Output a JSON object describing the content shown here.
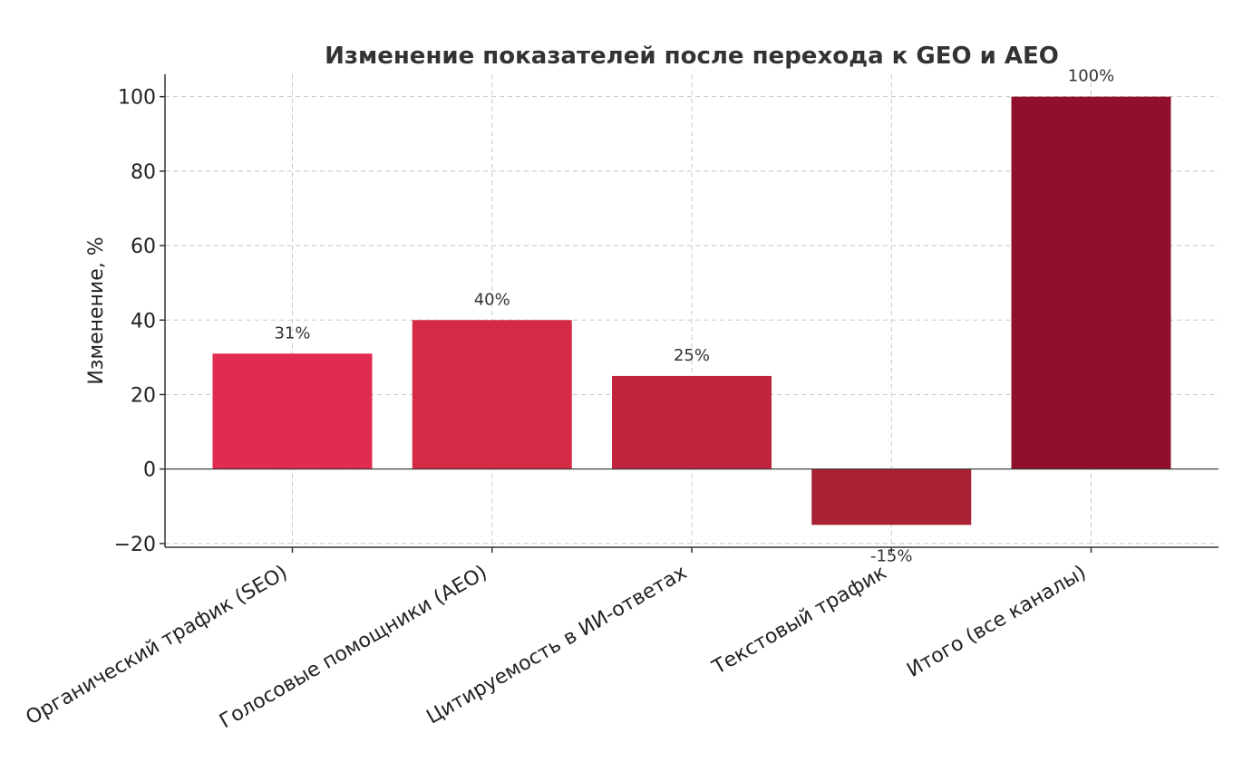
{
  "chart_data": {
    "type": "bar",
    "title": "Изменение показателей после перехода к GEO и AEO",
    "xlabel": "",
    "ylabel": "Изменение, %",
    "categories": [
      "Органический трафик (SEO)",
      "Голосовые помощники (AEO)",
      "Цитируемость в ИИ-ответах",
      "Текстовый трафик",
      "Итого (все каналы)"
    ],
    "values": [
      31,
      40,
      25,
      -15,
      100
    ],
    "data_labels": [
      "31%",
      "40%",
      "25%",
      "-15%",
      "100%"
    ],
    "bar_colors": [
      "#e22b50",
      "#d42a45",
      "#c0253d",
      "#a92233",
      "#8f102c"
    ],
    "ylim": [
      -21,
      106
    ],
    "yticks": [
      -20,
      0,
      20,
      40,
      60,
      80,
      100
    ],
    "ytick_labels": [
      "−20",
      "0",
      "20",
      "40",
      "60",
      "80",
      "100"
    ],
    "grid": true,
    "legend": "none"
  }
}
